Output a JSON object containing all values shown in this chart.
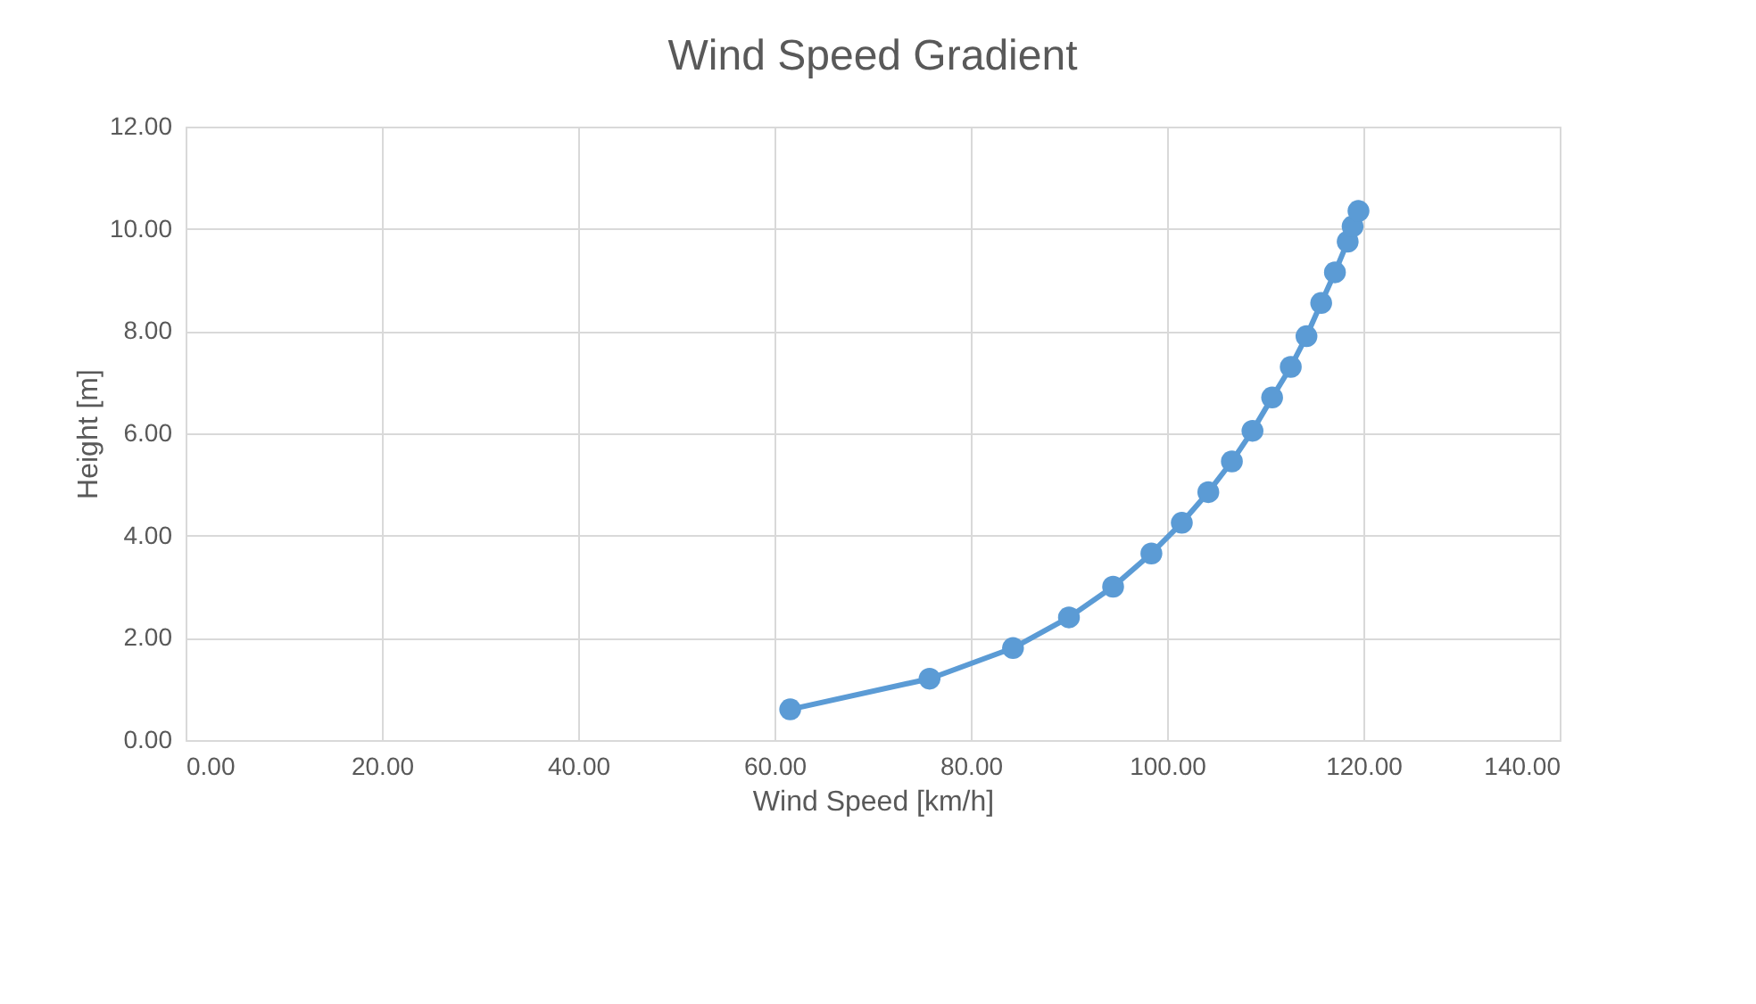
{
  "chart_data": {
    "type": "line",
    "title": "Wind Speed Gradient",
    "xlabel": "Wind Speed [km/h]",
    "ylabel": "Height [m]",
    "x": [
      61.6,
      75.8,
      84.3,
      90.0,
      94.5,
      98.4,
      101.5,
      104.2,
      106.6,
      108.7,
      110.7,
      112.6,
      114.2,
      115.7,
      117.1,
      118.4,
      118.9,
      119.5
    ],
    "series": [
      {
        "color": "#5b9bd5",
        "values": [
          0.6,
          1.2,
          1.8,
          2.4,
          3.0,
          3.65,
          4.25,
          4.85,
          5.45,
          6.05,
          6.7,
          7.3,
          7.9,
          8.55,
          9.15,
          9.75,
          10.05,
          10.35
        ]
      }
    ],
    "xlim": [
      0,
      140
    ],
    "xticks": [
      {
        "value": 0,
        "label": "0.00"
      },
      {
        "value": 20,
        "label": "20.00"
      },
      {
        "value": 40,
        "label": "40.00"
      },
      {
        "value": 60,
        "label": "60.00"
      },
      {
        "value": 80,
        "label": "80.00"
      },
      {
        "value": 100,
        "label": "100.00"
      },
      {
        "value": 120,
        "label": "120.00"
      },
      {
        "value": 140,
        "label": "140.00"
      }
    ],
    "ylim": [
      0,
      12
    ],
    "yticks": [
      {
        "value": 0,
        "label": "0.00"
      },
      {
        "value": 2,
        "label": "2.00"
      },
      {
        "value": 4,
        "label": "4.00"
      },
      {
        "value": 6,
        "label": "6.00"
      },
      {
        "value": 8,
        "label": "8.00"
      },
      {
        "value": 10,
        "label": "10.00"
      },
      {
        "value": 12,
        "label": "12.00"
      }
    ],
    "grid": true,
    "marker": "circle",
    "line_style": "solid"
  }
}
